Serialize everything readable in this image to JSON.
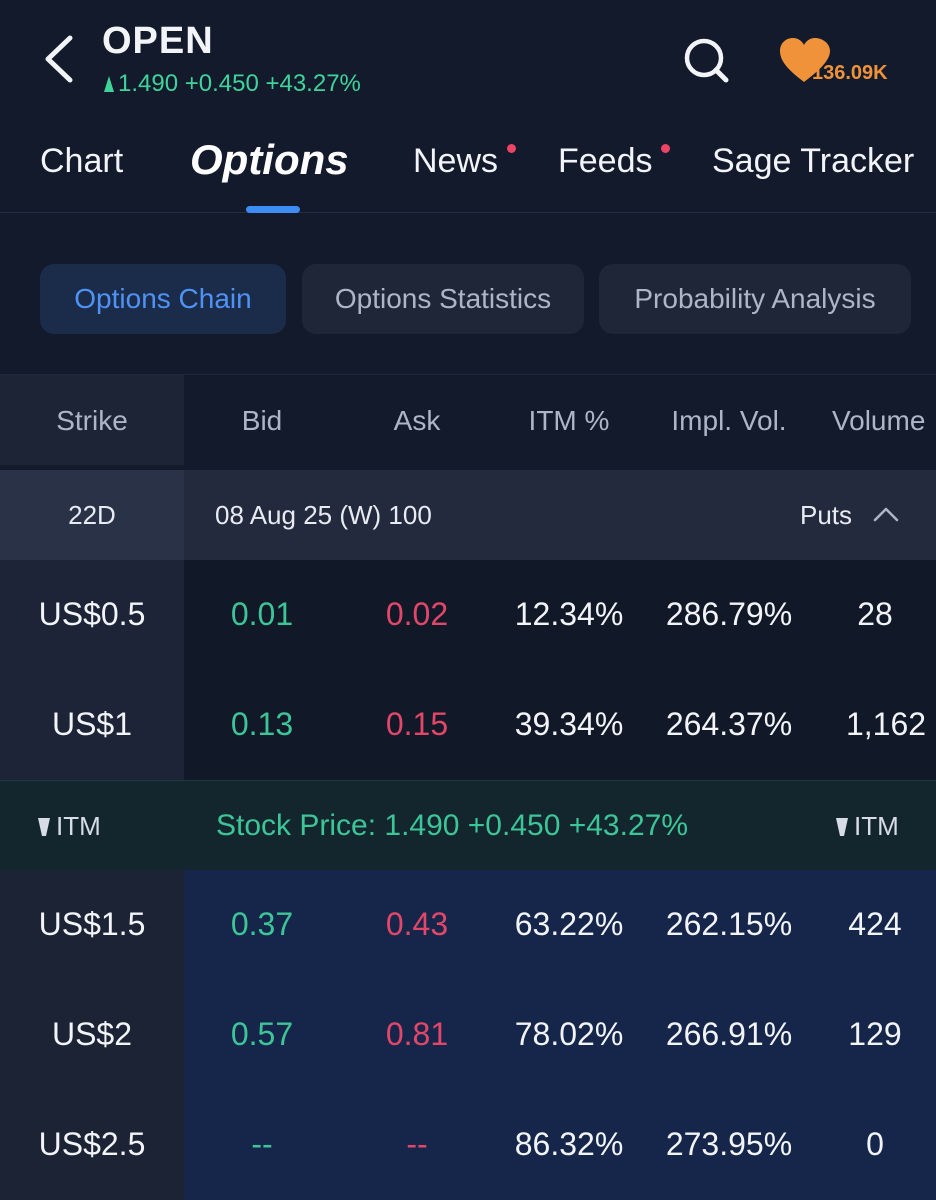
{
  "header": {
    "ticker": "OPEN",
    "quote": "1.490 +0.450 +43.27%",
    "favorites_count": "136.09K"
  },
  "tabs": [
    {
      "label": "Chart"
    },
    {
      "label": "Options"
    },
    {
      "label": "News"
    },
    {
      "label": "Feeds"
    },
    {
      "label": "Sage Tracker"
    }
  ],
  "subtabs": [
    {
      "label": "Options Chain"
    },
    {
      "label": "Options Statistics"
    },
    {
      "label": "Probability Analysis"
    }
  ],
  "table": {
    "columns": [
      "Strike",
      "Bid",
      "Ask",
      "ITM %",
      "Impl. Vol.",
      "Volume"
    ],
    "expiry": {
      "days": "22D",
      "label": "08 Aug 25 (W) 100",
      "type": "Puts"
    },
    "rows_above": [
      {
        "strike": "US$0.5",
        "bid": "0.01",
        "ask": "0.02",
        "itm": "12.34%",
        "iv": "286.79%",
        "volume": "28"
      },
      {
        "strike": "US$1",
        "bid": "0.13",
        "ask": "0.15",
        "itm": "39.34%",
        "iv": "264.37%",
        "volume": "1,162"
      }
    ],
    "stock_bar": {
      "left_label": "ITM",
      "right_label": "ITM",
      "text": "Stock Price: 1.490 +0.450 +43.27%"
    },
    "rows_below": [
      {
        "strike": "US$1.5",
        "bid": "0.37",
        "ask": "0.43",
        "itm": "63.22%",
        "iv": "262.15%",
        "volume": "424"
      },
      {
        "strike": "US$2",
        "bid": "0.57",
        "ask": "0.81",
        "itm": "78.02%",
        "iv": "266.91%",
        "volume": "129"
      },
      {
        "strike": "US$2.5",
        "bid": "--",
        "ask": "--",
        "itm": "86.32%",
        "iv": "273.95%",
        "volume": "0"
      }
    ]
  },
  "colors": {
    "background": "#121a2c",
    "accent": "#3d8df5",
    "up": "#3cc597",
    "down": "#e2476a",
    "favorite": "#f0923a",
    "itm_row_bg": "#16264a"
  },
  "icons": {
    "back": "chevron-left-icon",
    "search": "search-icon",
    "favorite": "heart-icon"
  }
}
